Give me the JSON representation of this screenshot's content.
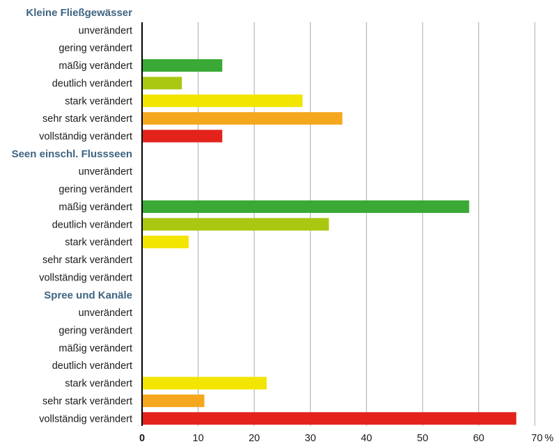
{
  "chart_data": {
    "type": "bar",
    "orientation": "horizontal",
    "unit": "%",
    "xlim": [
      0,
      70
    ],
    "ticks": [
      0,
      10,
      20,
      30,
      40,
      50,
      60,
      70
    ],
    "grid": true,
    "groups": [
      {
        "name": "Kleine Fließgewässer",
        "categories": [
          "unverändert",
          "gering verändert",
          "mäßig verändert",
          "deutlich verändert",
          "stark verändert",
          "sehr stark verändert",
          "vollständig verändert"
        ],
        "values": [
          0,
          0,
          14.3,
          7.1,
          28.6,
          35.7,
          14.3
        ]
      },
      {
        "name": "Seen einschl. Flussseen",
        "categories": [
          "unverändert",
          "gering verändert",
          "mäßig verändert",
          "deutlich verändert",
          "stark verändert",
          "sehr stark verändert",
          "vollständig verändert"
        ],
        "values": [
          0,
          0,
          58.3,
          33.3,
          8.3,
          0,
          0
        ]
      },
      {
        "name": "Spree und Kanäle",
        "categories": [
          "unverändert",
          "gering verändert",
          "mäßig verändert",
          "deutlich verändert",
          "stark verändert",
          "sehr stark verändert",
          "vollständig verändert"
        ],
        "values": [
          0,
          0,
          0,
          0,
          22.2,
          11.1,
          66.7
        ]
      }
    ],
    "colors": [
      "#ffffff",
      "#ffffff",
      "#3aa935",
      "#aac811",
      "#f2e500",
      "#f5a81d",
      "#e3231b"
    ]
  }
}
